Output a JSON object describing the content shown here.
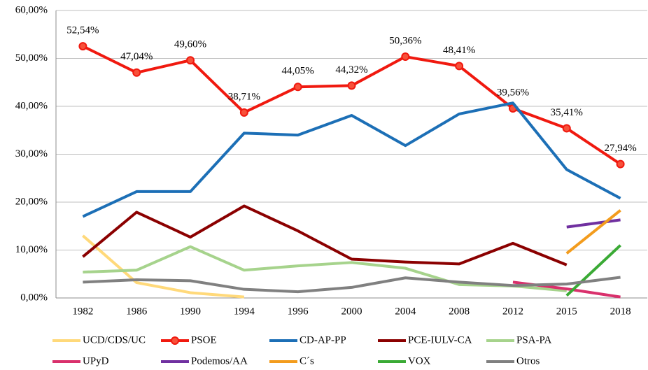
{
  "chart_data": {
    "type": "line",
    "categories": [
      "1982",
      "1986",
      "1990",
      "1994",
      "1996",
      "2000",
      "2004",
      "2008",
      "2012",
      "2015",
      "2018"
    ],
    "ylim": [
      0,
      60
    ],
    "yticks": [
      {
        "value": 0,
        "label": "0,00%"
      },
      {
        "value": 10,
        "label": "10,00%"
      },
      {
        "value": 20,
        "label": "20,00%"
      },
      {
        "value": 30,
        "label": "30,00%"
      },
      {
        "value": 40,
        "label": "40,00%"
      },
      {
        "value": 50,
        "label": "50,00%"
      },
      {
        "value": 60,
        "label": "60,00%"
      }
    ],
    "grid": true,
    "legend": "bottom",
    "series": [
      {
        "name": "UCD/CDS/UC",
        "color": "#ffd97a",
        "values": [
          13,
          3.2,
          1.1,
          0.2,
          null,
          null,
          null,
          null,
          null,
          null,
          null
        ]
      },
      {
        "name": "PSOE",
        "color": "#f0190f",
        "markers": true,
        "values": [
          52.54,
          47.04,
          49.6,
          38.71,
          44.05,
          44.32,
          50.36,
          48.41,
          39.56,
          35.41,
          27.94
        ],
        "value_labels": [
          "52,54%",
          "47,04%",
          "49,60%",
          "38,71%",
          "44,05%",
          "44,32%",
          "50,36%",
          "48,41%",
          "39,56%",
          "35,41%",
          "27,94%"
        ]
      },
      {
        "name": "CD-AP-PP",
        "color": "#1c6fb6",
        "values": [
          17,
          22.2,
          22.2,
          34.4,
          34,
          38.1,
          31.8,
          38.4,
          40.7,
          26.8,
          20.8
        ]
      },
      {
        "name": "PCE-IULV-CA",
        "color": "#8b0000",
        "values": [
          8.6,
          17.9,
          12.7,
          19.2,
          14,
          8.1,
          7.5,
          7.1,
          11.4,
          6.9,
          null
        ]
      },
      {
        "name": "PSA-PA",
        "color": "#a6d38c",
        "values": [
          5.4,
          5.8,
          10.7,
          5.8,
          6.7,
          7.4,
          6.2,
          2.8,
          2.5,
          1.5,
          null
        ]
      },
      {
        "name": "UPyD",
        "color": "#d9306c",
        "values": [
          null,
          null,
          null,
          null,
          null,
          null,
          null,
          null,
          3.3,
          1.9,
          0.2
        ]
      },
      {
        "name": "Podemos/AA",
        "color": "#7030a0",
        "values": [
          null,
          null,
          null,
          null,
          null,
          null,
          null,
          null,
          null,
          14.8,
          16.3
        ]
      },
      {
        "name": "C´s",
        "color": "#f39c1d",
        "values": [
          null,
          null,
          null,
          null,
          null,
          null,
          null,
          null,
          null,
          9.3,
          18.3
        ]
      },
      {
        "name": "VOX",
        "color": "#3aaa35",
        "values": [
          null,
          null,
          null,
          null,
          null,
          null,
          null,
          null,
          null,
          0.5,
          11
        ]
      },
      {
        "name": "Otros",
        "color": "#808080",
        "values": [
          3.3,
          3.8,
          3.6,
          1.8,
          1.3,
          2.2,
          4.2,
          3.3,
          2.6,
          2.9,
          4.3
        ]
      }
    ]
  }
}
